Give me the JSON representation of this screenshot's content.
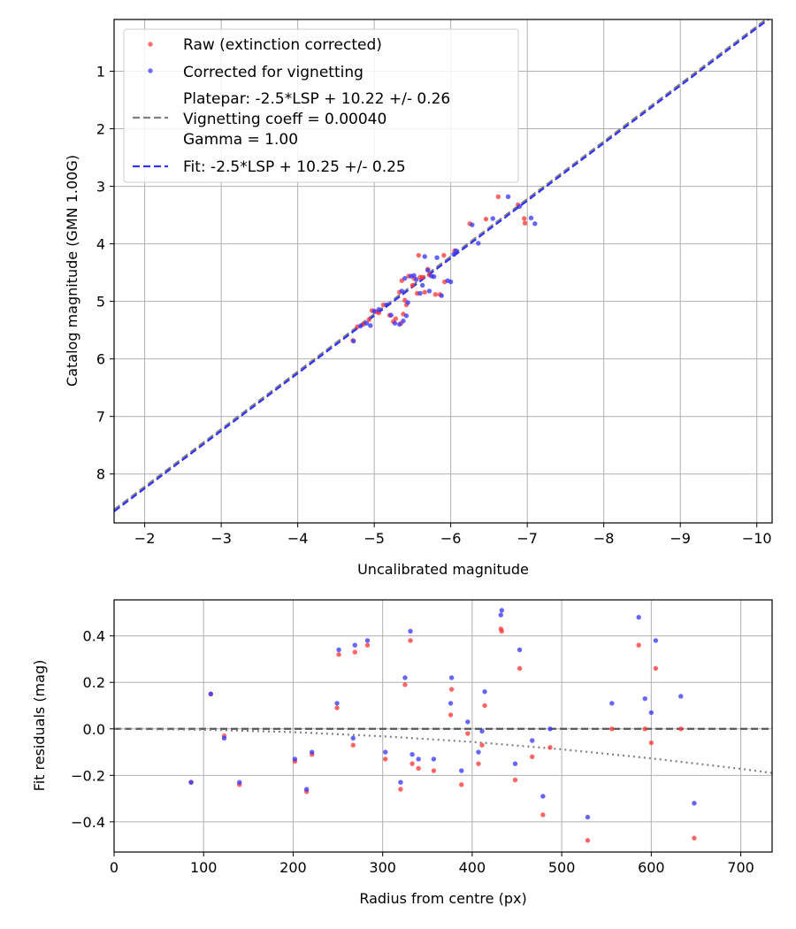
{
  "chart_data": [
    {
      "type": "scatter",
      "xlabel": "Uncalibrated magnitude",
      "ylabel": "Catalog magnitude (GMN 1.00G)",
      "xlim": [
        -1.6,
        -10.2
      ],
      "ylim": [
        8.85,
        0.1
      ],
      "grid": true,
      "xticks": [
        -2,
        -3,
        -4,
        -5,
        -6,
        -7,
        -8,
        -9,
        -10
      ],
      "xtick_labels": [
        "−2",
        "−3",
        "−4",
        "−5",
        "−6",
        "−7",
        "−8",
        "−9",
        "−10"
      ],
      "yticks": [
        1,
        2,
        3,
        4,
        5,
        6,
        7,
        8
      ],
      "ytick_labels": [
        "1",
        "2",
        "3",
        "4",
        "5",
        "6",
        "7",
        "8"
      ],
      "legend": {
        "placement": "top-left",
        "entries": [
          {
            "label": "Raw (extinction corrected)",
            "marker": "dot",
            "color": "#ff3333"
          },
          {
            "label": "Corrected for vignetting",
            "marker": "dot",
            "color": "#3333ff"
          },
          {
            "label": "Platepar: -2.5*LSP + 10.22 +/- 0.26",
            "marker": "dashed",
            "color": "#808080"
          },
          {
            "label": "Vignetting coeff = 0.00040",
            "marker": "none",
            "color": "#808080"
          },
          {
            "label": "Gamma = 1.00",
            "marker": "none",
            "color": "#808080"
          },
          {
            "label": "Fit: -2.5*LSP + 10.25 +/- 0.25",
            "marker": "dashed",
            "color": "#3333ff"
          }
        ]
      },
      "lines": [
        {
          "name": "Platepar",
          "slope": 1.0,
          "intercept": 10.22,
          "color": "#808080",
          "style": "dashed"
        },
        {
          "name": "Fit",
          "slope": 1.0,
          "intercept": 10.25,
          "color": "#3333ff",
          "style": "dashed"
        }
      ],
      "series": [
        {
          "name": "Raw (extinction corrected)",
          "color": "#ff3333",
          "points": [
            [
              -4.72,
              5.68
            ],
            [
              -4.78,
              5.44
            ],
            [
              -4.86,
              5.4
            ],
            [
              -4.93,
              5.32
            ],
            [
              -4.97,
              5.16
            ],
            [
              -5.02,
              5.18
            ],
            [
              -5.06,
              5.2
            ],
            [
              -5.12,
              5.06
            ],
            [
              -5.2,
              5.24
            ],
            [
              -5.25,
              5.35
            ],
            [
              -5.28,
              5.3
            ],
            [
              -5.33,
              4.84
            ],
            [
              -5.36,
              4.64
            ],
            [
              -5.38,
              5.22
            ],
            [
              -5.42,
              5.06
            ],
            [
              -5.45,
              4.56
            ],
            [
              -5.52,
              4.6
            ],
            [
              -5.56,
              4.86
            ],
            [
              -5.58,
              4.2
            ],
            [
              -5.63,
              4.58
            ],
            [
              -5.66,
              4.84
            ],
            [
              -5.7,
              4.44
            ],
            [
              -5.8,
              4.88
            ],
            [
              -5.86,
              4.88
            ],
            [
              -5.91,
              4.2
            ],
            [
              -6.05,
              4.12
            ],
            [
              -6.25,
              3.65
            ],
            [
              -6.46,
              3.57
            ],
            [
              -6.62,
              3.18
            ],
            [
              -6.88,
              3.32
            ],
            [
              -6.96,
              3.56
            ],
            [
              -6.97,
              3.64
            ],
            [
              -5.35,
              5.38
            ],
            [
              -5.5,
              4.72
            ],
            [
              -5.6,
              4.58
            ],
            [
              -5.72,
              4.54
            ],
            [
              -5.92,
              4.66
            ],
            [
              -5.4,
              4.98
            ]
          ]
        },
        {
          "name": "Corrected for vignetting",
          "color": "#3333ff",
          "points": [
            [
              -4.73,
              5.69
            ],
            [
              -4.82,
              5.43
            ],
            [
              -4.9,
              5.38
            ],
            [
              -4.95,
              5.42
            ],
            [
              -5.0,
              5.17
            ],
            [
              -5.06,
              5.14
            ],
            [
              -5.16,
              5.06
            ],
            [
              -5.22,
              5.24
            ],
            [
              -5.27,
              5.38
            ],
            [
              -5.33,
              5.4
            ],
            [
              -5.36,
              4.82
            ],
            [
              -5.4,
              4.6
            ],
            [
              -5.42,
              5.25
            ],
            [
              -5.48,
              4.56
            ],
            [
              -5.55,
              4.62
            ],
            [
              -5.6,
              4.86
            ],
            [
              -5.66,
              4.22
            ],
            [
              -5.7,
              4.46
            ],
            [
              -5.72,
              4.82
            ],
            [
              -5.78,
              4.57
            ],
            [
              -5.82,
              4.24
            ],
            [
              -5.88,
              4.9
            ],
            [
              -5.96,
              4.64
            ],
            [
              -6.04,
              4.18
            ],
            [
              -6.07,
              4.12
            ],
            [
              -6.28,
              3.67
            ],
            [
              -6.36,
              3.99
            ],
            [
              -6.55,
              3.56
            ],
            [
              -6.75,
              3.18
            ],
            [
              -6.9,
              3.35
            ],
            [
              -7.05,
              3.55
            ],
            [
              -7.1,
              3.65
            ],
            [
              -5.38,
              5.34
            ],
            [
              -5.52,
              4.55
            ],
            [
              -5.63,
              4.72
            ],
            [
              -5.75,
              4.56
            ],
            [
              -6.0,
              4.66
            ],
            [
              -5.44,
              5.02
            ]
          ]
        }
      ]
    },
    {
      "type": "scatter",
      "xlabel": "Radius from centre (px)",
      "ylabel": "Fit residuals (mag)",
      "xlim": [
        0,
        735
      ],
      "ylim": [
        -0.53,
        0.555
      ],
      "grid": true,
      "xticks": [
        0,
        100,
        200,
        300,
        400,
        500,
        600,
        700
      ],
      "xtick_labels": [
        "0",
        "100",
        "200",
        "300",
        "400",
        "500",
        "600",
        "700"
      ],
      "yticks": [
        -0.4,
        -0.2,
        0.0,
        0.2,
        0.4
      ],
      "ytick_labels": [
        "−0.4",
        "−0.2",
        "0.0",
        "0.2",
        "0.4"
      ],
      "lines": [
        {
          "name": "zero",
          "points": [
            [
              0,
              0
            ],
            [
              735,
              0
            ]
          ],
          "color": "#555555",
          "style": "dashed"
        },
        {
          "name": "vignetting model",
          "points": [
            [
              0,
              0
            ],
            [
              100,
              -0.0035
            ],
            [
              200,
              -0.014
            ],
            [
              300,
              -0.032
            ],
            [
              400,
              -0.056
            ],
            [
              500,
              -0.088
            ],
            [
              600,
              -0.127
            ],
            [
              700,
              -0.172
            ],
            [
              735,
              -0.19
            ]
          ],
          "color": "#808080",
          "style": "dotted"
        }
      ],
      "series": [
        {
          "name": "Raw (extinction corrected)",
          "color": "#ff3333",
          "points": [
            [
              86,
              -0.23
            ],
            [
              108,
              0.15
            ],
            [
              123,
              -0.03
            ],
            [
              140,
              -0.24
            ],
            [
              202,
              -0.14
            ],
            [
              215,
              -0.27
            ],
            [
              221,
              -0.11
            ],
            [
              249,
              0.09
            ],
            [
              251,
              0.32
            ],
            [
              267,
              -0.07
            ],
            [
              269,
              0.33
            ],
            [
              283,
              0.36
            ],
            [
              303,
              -0.13
            ],
            [
              320,
              -0.26
            ],
            [
              325,
              0.19
            ],
            [
              331,
              0.38
            ],
            [
              333,
              -0.15
            ],
            [
              340,
              -0.17
            ],
            [
              357,
              -0.18
            ],
            [
              376,
              0.06
            ],
            [
              377,
              0.17
            ],
            [
              388,
              -0.24
            ],
            [
              395,
              -0.02
            ],
            [
              407,
              -0.15
            ],
            [
              411,
              -0.07
            ],
            [
              414,
              0.1
            ],
            [
              432,
              0.43
            ],
            [
              433,
              0.42
            ],
            [
              448,
              -0.22
            ],
            [
              453,
              0.26
            ],
            [
              467,
              -0.12
            ],
            [
              479,
              -0.37
            ],
            [
              487,
              -0.08
            ],
            [
              529,
              -0.48
            ],
            [
              556,
              0.0
            ],
            [
              586,
              0.36
            ],
            [
              593,
              0.0
            ],
            [
              600,
              -0.06
            ],
            [
              605,
              0.26
            ],
            [
              633,
              0.0
            ],
            [
              648,
              -0.47
            ]
          ]
        },
        {
          "name": "Corrected for vignetting",
          "color": "#3333ff",
          "points": [
            [
              86,
              -0.23
            ],
            [
              108,
              0.15
            ],
            [
              123,
              -0.04
            ],
            [
              140,
              -0.23
            ],
            [
              202,
              -0.13
            ],
            [
              215,
              -0.26
            ],
            [
              221,
              -0.1
            ],
            [
              249,
              0.11
            ],
            [
              251,
              0.34
            ],
            [
              267,
              -0.04
            ],
            [
              269,
              0.36
            ],
            [
              283,
              0.38
            ],
            [
              303,
              -0.1
            ],
            [
              320,
              -0.23
            ],
            [
              325,
              0.22
            ],
            [
              331,
              0.42
            ],
            [
              333,
              -0.11
            ],
            [
              340,
              -0.13
            ],
            [
              357,
              -0.13
            ],
            [
              376,
              0.11
            ],
            [
              377,
              0.22
            ],
            [
              388,
              -0.18
            ],
            [
              395,
              0.03
            ],
            [
              407,
              -0.1
            ],
            [
              411,
              -0.01
            ],
            [
              414,
              0.16
            ],
            [
              432,
              0.49
            ],
            [
              433,
              0.51
            ],
            [
              448,
              -0.15
            ],
            [
              453,
              0.34
            ],
            [
              467,
              -0.05
            ],
            [
              479,
              -0.29
            ],
            [
              487,
              0.0
            ],
            [
              529,
              -0.38
            ],
            [
              556,
              0.11
            ],
            [
              586,
              0.48
            ],
            [
              593,
              0.13
            ],
            [
              600,
              0.07
            ],
            [
              605,
              0.38
            ],
            [
              633,
              0.14
            ],
            [
              648,
              -0.32
            ]
          ]
        }
      ]
    }
  ]
}
